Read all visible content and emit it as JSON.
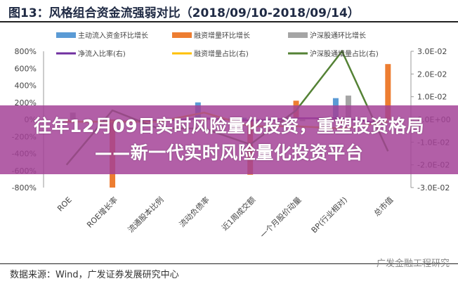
{
  "title": "图13：风格组合资金流强弱对比（2018/09/10-2018/09/14）",
  "banner": "往年12月09日实时风险量化投资，重塑投资格局——新一代实时风险量化投资平台",
  "source": "数据来源：Wind，广发证券发展研究中心",
  "watermark": "广发金融工程研究",
  "chart_data": {
    "type": "bar",
    "categories": [
      "ROE",
      "ROE增长率",
      "流通股本比例",
      "流动负债率",
      "近1周成交额",
      "一个月股价动量",
      "BP(行业相对)",
      "总市值"
    ],
    "left_axis": {
      "ylim": [
        -800,
        800
      ],
      "ticks": [
        "800%",
        "600%",
        "400%",
        "200%",
        "0%",
        "-200%",
        "-400%",
        "-600%",
        "-800%"
      ]
    },
    "right_axis": {
      "ylim": [
        -0.03,
        0.03
      ],
      "ticks": [
        "3.0E-02",
        "2.0E-02",
        "1.0E-02",
        "0.0E+00",
        "-1.0E-02",
        "-2.0E-02",
        "-3.0E-02"
      ]
    },
    "legend_placement": "top",
    "bar_series": [
      {
        "name": "主动流入资金环比增长",
        "color": "#5b9bd5",
        "values": [
          -20,
          -30,
          -10,
          200,
          20,
          -20,
          250,
          -10
        ]
      },
      {
        "name": "融资增量环比增长",
        "color": "#ed7d31",
        "values": [
          -30,
          -800,
          -20,
          -20,
          -650,
          220,
          -40,
          650
        ]
      },
      {
        "name": "沪深股通环比增长",
        "color": "#a5a5a5",
        "values": [
          80,
          -20,
          -10,
          -10,
          -20,
          -20,
          280,
          -10
        ]
      }
    ],
    "line_series": [
      {
        "name": "净流入比率(右)",
        "color": "#7030a0",
        "values": [
          -0.001,
          -0.001,
          -0.0005,
          0.0005,
          -0.0005,
          0.0005,
          0.0005,
          -0.002
        ]
      },
      {
        "name": "融资增量占比(右)",
        "color": "#ffc000",
        "values": [
          -0.001,
          -0.001,
          -0.001,
          0.003,
          -0.003,
          -0.003,
          -0.004,
          -0.001
        ]
      },
      {
        "name": "沪深股通增量占比(右)",
        "color": "#548235",
        "values": [
          -0.02,
          0.004,
          -0.004,
          -0.004,
          -0.011,
          0.004,
          0.03,
          -0.014
        ]
      }
    ]
  }
}
